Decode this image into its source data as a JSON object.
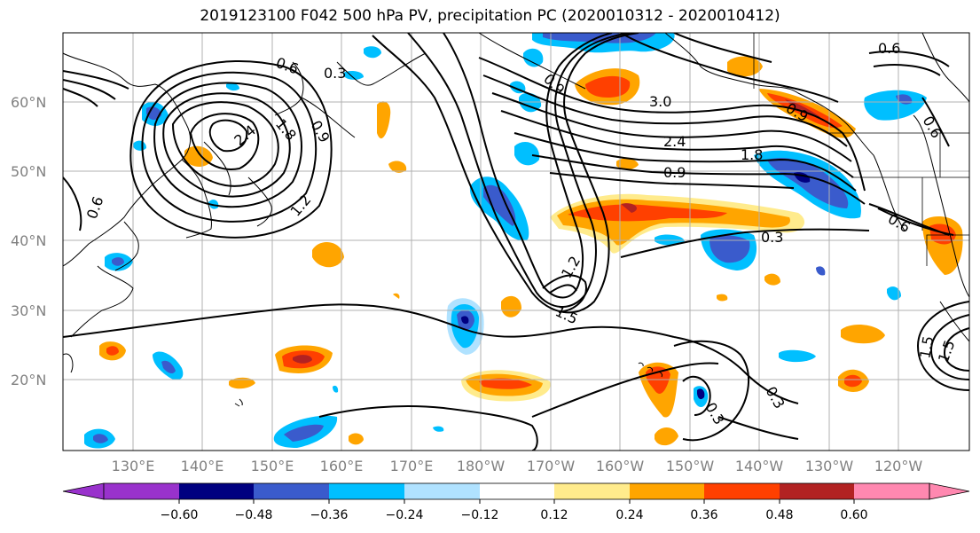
{
  "title": "2019123100 F042 500 hPa PV, precipitation PC (2020010312 - 2020010412)",
  "lat_labels": [
    "60°N",
    "50°N",
    "40°N",
    "30°N",
    "20°N"
  ],
  "lon_labels": [
    "130°E",
    "140°E",
    "150°E",
    "160°E",
    "170°E",
    "180°W",
    "170°W",
    "160°W",
    "150°W",
    "140°W",
    "130°W",
    "120°W"
  ],
  "colorbar": {
    "colors": [
      "#9932CC",
      "#000080",
      "#3A5BCC",
      "#00BFFF",
      "#B0E2FF",
      "#FFFFFF",
      "#FFEB8C",
      "#FFA500",
      "#FF4000",
      "#B22222",
      "#FF88B0"
    ],
    "tick_labels": [
      "−0.60",
      "−0.48",
      "−0.36",
      "−0.24",
      "−0.12",
      "0.12",
      "0.24",
      "0.36",
      "0.48",
      "0.60"
    ]
  },
  "contour_labels": [
    "0.6",
    "0.9",
    "1.2",
    "1.5",
    "1.8",
    "2.4",
    "0.3",
    "0.6",
    "0.9",
    "1.2",
    "1.5",
    "1.8",
    "2.4",
    "3.0",
    "0.6",
    "0.9",
    "0.6",
    "0.3",
    "0.6",
    "0.3",
    "0.3",
    "0.9",
    "1.5"
  ]
}
